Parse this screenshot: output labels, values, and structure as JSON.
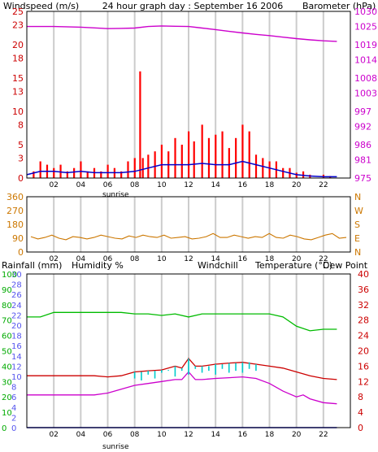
{
  "header": {
    "left": "Windspeed (m/s)",
    "center": "24 hour graph day : September 16 2006",
    "right": "Barometer (hPa)"
  },
  "colors": {
    "wind": "#ff0000",
    "wind_avg": "#0000cc",
    "barometer": "#cc00cc",
    "direction": "#cc7700",
    "temperature": "#cc0000",
    "dew_point": "#cc00cc",
    "humidity": "#00bb00",
    "windchill": "#00cccc",
    "rainfall": "#0000cc",
    "left_axis": "#cc0000",
    "green_axis": "#00aa00",
    "rain_axis": "#5555ee"
  },
  "chart_data": [
    {
      "type": "bar",
      "x_ticks": [
        "02",
        "04",
        "06",
        "08",
        "10",
        "12",
        "14",
        "16",
        "18",
        "20",
        "22"
      ],
      "x_annotation": "sunrise",
      "ylim": [
        0,
        25
      ],
      "y_ticks": [
        0,
        3,
        5,
        8,
        10,
        13,
        15,
        18,
        20,
        23,
        25
      ],
      "y2lim": [
        975,
        1030
      ],
      "y2_ticks": [
        975,
        981,
        986,
        992,
        997,
        1003,
        1008,
        1014,
        1019,
        1025,
        1030
      ],
      "series": [
        {
          "name": "Windspeed (m/s)",
          "type": "bar",
          "axis": "left",
          "x": [
            0.5,
            1.0,
            1.5,
            2.0,
            2.5,
            3.0,
            3.5,
            4.0,
            4.5,
            5.0,
            5.5,
            6.0,
            6.5,
            7.0,
            7.5,
            8.0,
            8.4,
            8.6,
            9.0,
            9.5,
            10.0,
            10.5,
            11.0,
            11.5,
            12.0,
            12.4,
            13.0,
            13.5,
            14.0,
            14.5,
            15.0,
            15.5,
            16.0,
            16.5,
            17.0,
            17.5,
            18.0,
            18.5,
            19.0,
            19.5,
            20.0,
            20.5,
            21.0,
            22.0,
            22.5
          ],
          "values": [
            1.0,
            2.5,
            2.0,
            1.5,
            2.0,
            1.0,
            1.5,
            2.5,
            1.0,
            1.5,
            1.0,
            2.0,
            1.5,
            1.0,
            2.5,
            3.0,
            16.0,
            3.0,
            3.5,
            4.0,
            5.0,
            4.0,
            6.0,
            5.0,
            7.0,
            5.5,
            8.0,
            6.0,
            6.5,
            7.0,
            4.5,
            6.0,
            8.0,
            7.0,
            3.5,
            3.0,
            2.5,
            2.5,
            1.5,
            1.5,
            0.8,
            1.0,
            0.5,
            0.5,
            0.3
          ]
        },
        {
          "name": "Average windspeed",
          "type": "line",
          "axis": "left",
          "x": [
            0,
            1,
            2,
            3,
            4,
            5,
            6,
            7,
            8,
            9,
            10,
            11,
            12,
            13,
            14,
            15,
            16,
            17,
            18,
            19,
            20,
            21,
            22,
            23
          ],
          "values": [
            0.5,
            1.0,
            1.0,
            0.8,
            1.0,
            0.8,
            0.8,
            0.8,
            1.0,
            1.5,
            2.0,
            2.0,
            2.0,
            2.2,
            2.0,
            2.0,
            2.5,
            2.0,
            1.5,
            1.0,
            0.5,
            0.3,
            0.2,
            0.2
          ]
        },
        {
          "name": "Barometer (hPa)",
          "type": "line",
          "axis": "right",
          "x": [
            0,
            2,
            4,
            6,
            7,
            8,
            9,
            10,
            11,
            12,
            13,
            14,
            15,
            16,
            17,
            18,
            19,
            20,
            21,
            22,
            23
          ],
          "values": [
            1025.0,
            1025.0,
            1024.8,
            1024.3,
            1024.4,
            1024.5,
            1025.0,
            1025.2,
            1025.1,
            1025.0,
            1024.5,
            1024.0,
            1023.4,
            1022.9,
            1022.4,
            1022.0,
            1021.5,
            1021.0,
            1020.6,
            1020.3,
            1020.1
          ]
        }
      ]
    },
    {
      "type": "line",
      "x_ticks": [
        "02",
        "04",
        "06",
        "08",
        "10",
        "12",
        "14",
        "16",
        "18",
        "20",
        "22"
      ],
      "ylim": [
        0,
        360
      ],
      "y_ticks": [
        0,
        90,
        180,
        270,
        360
      ],
      "y2_ticks": [
        "N",
        "E",
        "S",
        "W",
        "N"
      ],
      "series": [
        {
          "name": "Wind direction",
          "values": [
            100,
            85,
            95,
            110,
            90,
            80,
            100,
            95,
            85,
            95,
            110,
            100,
            90,
            85,
            105,
            95,
            110,
            100,
            95,
            110,
            90,
            95,
            100,
            85,
            90,
            100,
            120,
            95,
            95,
            110,
            100,
            90,
            100,
            95,
            120,
            95,
            90,
            110,
            100,
            85,
            80,
            95,
            110,
            120,
            90,
            95
          ]
        }
      ]
    },
    {
      "type": "line",
      "legend": [
        "Rainfall (mm)",
        "Humidity %",
        "Windchill",
        "Temperature (°C)",
        "Dew Point"
      ],
      "x_ticks": [
        "02",
        "04",
        "06",
        "08",
        "10",
        "12",
        "14",
        "16",
        "18",
        "20",
        "22"
      ],
      "x_annotation": "sunrise",
      "rain_ticks": [
        0,
        2,
        4,
        6,
        8,
        10,
        12,
        14,
        16,
        18,
        20,
        22,
        24,
        26,
        28,
        30
      ],
      "humidity_ticks": [
        0,
        10,
        20,
        30,
        40,
        50,
        60,
        70,
        80,
        90,
        100
      ],
      "ylim": [
        0,
        40
      ],
      "y2_ticks": [
        0,
        4,
        8,
        12,
        16,
        20,
        24,
        28,
        32,
        36,
        40
      ],
      "series": [
        {
          "name": "Humidity %",
          "axis": "humidity",
          "x": [
            0,
            1,
            2,
            3,
            4,
            5,
            6,
            7,
            8,
            9,
            10,
            11,
            12,
            13,
            14,
            15,
            16,
            17,
            18,
            19,
            20,
            21,
            22,
            23
          ],
          "values": [
            72,
            72,
            75,
            75,
            75,
            75,
            75,
            75,
            74,
            74,
            73,
            74,
            72,
            74,
            74,
            74,
            74,
            74,
            74,
            72,
            66,
            63,
            64,
            64
          ]
        },
        {
          "name": "Temperature (°C)",
          "axis": "temp",
          "x": [
            0,
            1,
            2,
            3,
            4,
            5,
            6,
            7,
            8,
            9,
            10,
            11,
            11.5,
            12,
            12.5,
            13,
            14,
            15,
            16,
            17,
            18,
            19,
            20,
            21,
            22,
            23
          ],
          "values": [
            13.5,
            13.5,
            13.5,
            13.5,
            13.5,
            13.5,
            13.2,
            13.5,
            14.5,
            14.8,
            15.0,
            16.0,
            15.5,
            18.0,
            16.0,
            16.0,
            16.5,
            16.8,
            17.0,
            16.5,
            16.0,
            15.5,
            14.5,
            13.5,
            12.8,
            12.5
          ]
        },
        {
          "name": "Dew Point",
          "axis": "temp",
          "x": [
            0,
            1,
            2,
            3,
            4,
            5,
            6,
            7,
            8,
            9,
            10,
            11,
            11.5,
            12,
            12.5,
            13,
            14,
            15,
            16,
            17,
            18,
            19,
            20,
            20.5,
            21,
            22,
            23
          ],
          "values": [
            8.5,
            8.5,
            8.5,
            8.5,
            8.5,
            8.5,
            9.0,
            10.0,
            11.0,
            11.5,
            12.0,
            12.5,
            12.5,
            14.5,
            12.5,
            12.5,
            12.8,
            13.0,
            13.2,
            12.8,
            11.5,
            9.5,
            8.0,
            8.5,
            7.5,
            6.5,
            6.2
          ]
        },
        {
          "name": "Windchill",
          "axis": "temp",
          "x": [
            8.0,
            8.5,
            9.0,
            9.5,
            10.0,
            10.5,
            11.0,
            11.5,
            12.0,
            12.5,
            13.0,
            13.5,
            14.0,
            14.5,
            15.0,
            15.5,
            16.0,
            16.5,
            17.0
          ],
          "values": [
            13.0,
            12.5,
            14.0,
            13.0,
            14.5,
            15.0,
            13.5,
            15.0,
            14.0,
            15.5,
            14.5,
            15.0,
            14.0,
            15.5,
            14.5,
            15.0,
            14.5,
            15.5,
            15.0
          ]
        },
        {
          "name": "Rainfall (mm)",
          "axis": "rain",
          "x": [
            0,
            23
          ],
          "values": [
            0,
            0
          ]
        }
      ]
    }
  ]
}
